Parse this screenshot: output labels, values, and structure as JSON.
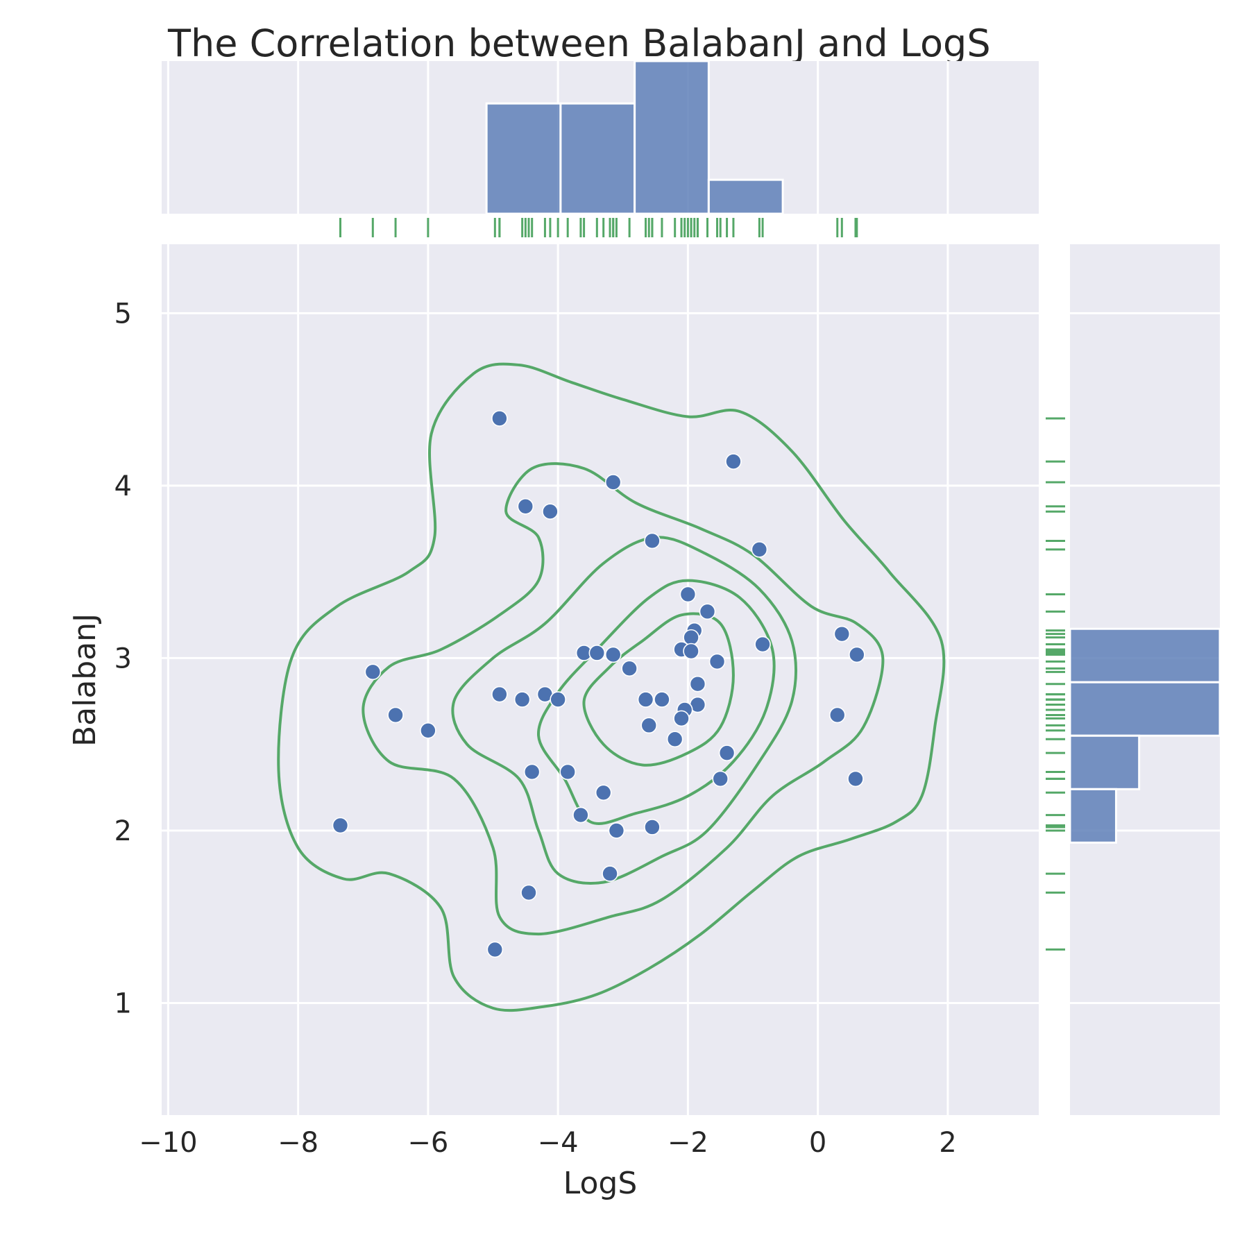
{
  "chart_data": {
    "type": "scatter",
    "title": "The Correlation between BalabanJ and LogS",
    "xlabel": "LogS",
    "ylabel": "BalabanJ",
    "xlim": [
      -10.1,
      3.4
    ],
    "ylim": [
      0.35,
      5.4
    ],
    "xticks": [
      -10,
      -8,
      -6,
      -4,
      -2,
      0,
      2
    ],
    "xtick_labels": [
      "−10",
      "−8",
      "−6",
      "−4",
      "−2",
      "0",
      "2"
    ],
    "yticks": [
      1,
      2,
      3,
      4,
      5
    ],
    "ytick_labels": [
      "1",
      "2",
      "3",
      "4",
      "5"
    ],
    "grid": true,
    "colors": {
      "points": "#4c72b0",
      "rug_kde": "#55a868",
      "background": "#eaeaf2"
    },
    "points": [
      {
        "x": -4.9,
        "y": 4.39
      },
      {
        "x": -1.3,
        "y": 4.14
      },
      {
        "x": -3.15,
        "y": 4.02
      },
      {
        "x": -4.5,
        "y": 3.88
      },
      {
        "x": -4.12,
        "y": 3.85
      },
      {
        "x": -2.55,
        "y": 3.68
      },
      {
        "x": -0.9,
        "y": 3.63
      },
      {
        "x": -2.0,
        "y": 3.37
      },
      {
        "x": -1.7,
        "y": 3.27
      },
      {
        "x": -1.9,
        "y": 3.16
      },
      {
        "x": -1.95,
        "y": 3.12
      },
      {
        "x": 0.37,
        "y": 3.14
      },
      {
        "x": -0.85,
        "y": 3.08
      },
      {
        "x": -2.1,
        "y": 3.05
      },
      {
        "x": -1.95,
        "y": 3.04
      },
      {
        "x": -3.6,
        "y": 3.03
      },
      {
        "x": -3.4,
        "y": 3.03
      },
      {
        "x": -3.15,
        "y": 3.02
      },
      {
        "x": 0.6,
        "y": 3.02
      },
      {
        "x": -1.55,
        "y": 2.98
      },
      {
        "x": -2.9,
        "y": 2.94
      },
      {
        "x": -6.85,
        "y": 2.92
      },
      {
        "x": -1.85,
        "y": 2.85
      },
      {
        "x": -4.9,
        "y": 2.79
      },
      {
        "x": -4.2,
        "y": 2.79
      },
      {
        "x": -4.55,
        "y": 2.76
      },
      {
        "x": -4.0,
        "y": 2.76
      },
      {
        "x": -2.65,
        "y": 2.76
      },
      {
        "x": -2.4,
        "y": 2.76
      },
      {
        "x": -1.85,
        "y": 2.73
      },
      {
        "x": -2.05,
        "y": 2.7
      },
      {
        "x": -2.1,
        "y": 2.65
      },
      {
        "x": -6.5,
        "y": 2.67
      },
      {
        "x": 0.3,
        "y": 2.67
      },
      {
        "x": -2.6,
        "y": 2.61
      },
      {
        "x": -6.0,
        "y": 2.58
      },
      {
        "x": -2.2,
        "y": 2.53
      },
      {
        "x": -1.4,
        "y": 2.45
      },
      {
        "x": -4.4,
        "y": 2.34
      },
      {
        "x": -3.85,
        "y": 2.34
      },
      {
        "x": -1.5,
        "y": 2.3
      },
      {
        "x": 0.58,
        "y": 2.3
      },
      {
        "x": -3.3,
        "y": 2.22
      },
      {
        "x": -3.65,
        "y": 2.09
      },
      {
        "x": -7.35,
        "y": 2.03
      },
      {
        "x": -2.55,
        "y": 2.02
      },
      {
        "x": -3.1,
        "y": 2.0
      },
      {
        "x": -3.2,
        "y": 1.75
      },
      {
        "x": -4.45,
        "y": 1.64
      },
      {
        "x": -4.97,
        "y": 1.31
      }
    ],
    "kde_levels": [
      [
        [
          -4.6,
          4.7
        ],
        [
          -3.8,
          4.6
        ],
        [
          -3.0,
          4.5
        ],
        [
          -2.0,
          4.4
        ],
        [
          -1.2,
          4.43
        ],
        [
          -0.4,
          4.2
        ],
        [
          0.4,
          3.8
        ],
        [
          1.1,
          3.5
        ],
        [
          1.9,
          3.1
        ],
        [
          1.8,
          2.6
        ],
        [
          1.6,
          2.2
        ],
        [
          1.2,
          2.05
        ],
        [
          0.5,
          1.95
        ],
        [
          -0.3,
          1.85
        ],
        [
          -1.0,
          1.65
        ],
        [
          -1.8,
          1.4
        ],
        [
          -2.6,
          1.2
        ],
        [
          -3.4,
          1.05
        ],
        [
          -4.2,
          0.98
        ],
        [
          -5.0,
          0.97
        ],
        [
          -5.6,
          1.15
        ],
        [
          -5.8,
          1.55
        ],
        [
          -6.6,
          1.75
        ],
        [
          -7.3,
          1.72
        ],
        [
          -8.0,
          1.9
        ],
        [
          -8.3,
          2.35
        ],
        [
          -8.1,
          3.0
        ],
        [
          -7.4,
          3.3
        ],
        [
          -6.3,
          3.5
        ],
        [
          -5.9,
          3.7
        ],
        [
          -5.95,
          4.3
        ],
        [
          -5.3,
          4.65
        ]
      ],
      [
        [
          -4.4,
          4.1
        ],
        [
          -3.6,
          4.1
        ],
        [
          -2.8,
          3.9
        ],
        [
          -1.8,
          3.75
        ],
        [
          -1.0,
          3.6
        ],
        [
          -0.1,
          3.3
        ],
        [
          0.6,
          3.2
        ],
        [
          1.0,
          3.0
        ],
        [
          0.7,
          2.6
        ],
        [
          0.1,
          2.4
        ],
        [
          -0.7,
          2.2
        ],
        [
          -1.4,
          1.9
        ],
        [
          -2.4,
          1.6
        ],
        [
          -3.2,
          1.5
        ],
        [
          -4.3,
          1.4
        ],
        [
          -4.9,
          1.5
        ],
        [
          -5.0,
          1.9
        ],
        [
          -5.6,
          2.3
        ],
        [
          -6.6,
          2.4
        ],
        [
          -7.0,
          2.7
        ],
        [
          -6.6,
          2.95
        ],
        [
          -5.8,
          3.05
        ],
        [
          -4.9,
          3.25
        ],
        [
          -4.3,
          3.45
        ],
        [
          -4.3,
          3.7
        ],
        [
          -4.8,
          3.85
        ]
      ],
      [
        [
          -2.5,
          3.7
        ],
        [
          -1.7,
          3.6
        ],
        [
          -0.9,
          3.4
        ],
        [
          -0.4,
          3.1
        ],
        [
          -0.4,
          2.75
        ],
        [
          -0.9,
          2.4
        ],
        [
          -1.7,
          2.0
        ],
        [
          -2.4,
          1.85
        ],
        [
          -3.3,
          1.7
        ],
        [
          -4.0,
          1.75
        ],
        [
          -4.3,
          2.0
        ],
        [
          -4.6,
          2.3
        ],
        [
          -5.4,
          2.5
        ],
        [
          -5.6,
          2.75
        ],
        [
          -5.0,
          3.0
        ],
        [
          -4.2,
          3.2
        ],
        [
          -3.3,
          3.55
        ]
      ],
      [
        [
          -2.0,
          3.45
        ],
        [
          -1.2,
          3.35
        ],
        [
          -0.7,
          3.05
        ],
        [
          -0.8,
          2.7
        ],
        [
          -1.3,
          2.4
        ],
        [
          -2.0,
          2.2
        ],
        [
          -2.8,
          2.1
        ],
        [
          -3.5,
          2.05
        ],
        [
          -3.9,
          2.3
        ],
        [
          -4.3,
          2.55
        ],
        [
          -4.0,
          2.8
        ],
        [
          -3.4,
          3.05
        ],
        [
          -2.6,
          3.35
        ]
      ],
      [
        [
          -2.1,
          3.25
        ],
        [
          -1.5,
          3.2
        ],
        [
          -1.3,
          2.9
        ],
        [
          -1.5,
          2.6
        ],
        [
          -2.0,
          2.45
        ],
        [
          -2.7,
          2.38
        ],
        [
          -3.3,
          2.5
        ],
        [
          -3.6,
          2.75
        ],
        [
          -3.2,
          2.95
        ],
        [
          -2.7,
          3.1
        ]
      ]
    ],
    "rug_x": [
      -7.35,
      -6.85,
      -6.5,
      -6.0,
      -4.97,
      -4.9,
      -4.9,
      -4.55,
      -4.5,
      -4.45,
      -4.4,
      -4.2,
      -4.12,
      -4.0,
      -3.85,
      -3.65,
      -3.6,
      -3.4,
      -3.3,
      -3.2,
      -3.15,
      -3.15,
      -3.1,
      -2.9,
      -2.65,
      -2.6,
      -2.55,
      -2.55,
      -2.4,
      -2.2,
      -2.1,
      -2.1,
      -2.05,
      -2.0,
      -1.95,
      -1.95,
      -1.9,
      -1.85,
      -1.85,
      -1.7,
      -1.55,
      -1.5,
      -1.4,
      -1.3,
      -0.9,
      -0.85,
      0.3,
      0.37,
      0.58,
      0.6
    ],
    "rug_y": [
      4.39,
      4.14,
      4.02,
      3.88,
      3.85,
      3.68,
      3.63,
      3.37,
      3.27,
      3.16,
      3.14,
      3.12,
      3.08,
      3.05,
      3.04,
      3.03,
      3.03,
      3.02,
      3.02,
      2.98,
      2.94,
      2.92,
      2.85,
      2.79,
      2.79,
      2.76,
      2.76,
      2.76,
      2.76,
      2.73,
      2.7,
      2.67,
      2.67,
      2.65,
      2.61,
      2.58,
      2.53,
      2.45,
      2.34,
      2.34,
      2.3,
      2.3,
      2.22,
      2.09,
      2.03,
      2.02,
      2.0,
      1.75,
      1.64,
      1.31
    ],
    "hist_x": [
      {
        "x0": -5.1,
        "x1": -3.96,
        "count": 13
      },
      {
        "x0": -3.96,
        "x1": -2.82,
        "count": 13
      },
      {
        "x0": -2.82,
        "x1": -1.68,
        "count": 18
      },
      {
        "x0": -1.68,
        "x1": -0.54,
        "count": 4
      }
    ],
    "hist_y": [
      {
        "y0": 2.86,
        "y1": 3.17,
        "count": 13
      },
      {
        "y0": 2.55,
        "y1": 2.86,
        "count": 13
      },
      {
        "y0": 2.24,
        "y1": 2.55,
        "count": 6
      },
      {
        "y0": 1.93,
        "y1": 2.24,
        "count": 4
      }
    ]
  }
}
